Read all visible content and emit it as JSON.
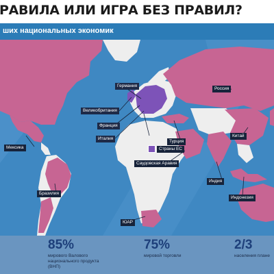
{
  "headline": "РАВИЛА ИЛИ ИГРА БЕЗ ПРАВИЛ?",
  "banner": "ших национальных экономик",
  "map_labels": {
    "germany": "Германия",
    "uk": "Великобритания",
    "france": "Франция",
    "italy": "Италия",
    "eu_legend": "Страны ЕС",
    "mexico": "Мексика",
    "russia": "Россия",
    "china": "Китай",
    "turkey": "Турция",
    "saudi": "Саудовская Аравия",
    "india": "Индия",
    "indonesia": "Индонезия",
    "brazil": "Бразилия",
    "south_africa": "ЮАР"
  },
  "stats": [
    {
      "value": "85%",
      "caption": "мирового Валового\nнационального продукта\n(ВНП)"
    },
    {
      "value": "75%",
      "caption": "мировой торговли"
    },
    {
      "value": "2/3",
      "caption": "населения плане"
    }
  ],
  "colors": {
    "ocean": "#3f88c2",
    "g20_country": "#c76593",
    "other_land": "#eeeeee",
    "eu_country": "#7d53b8",
    "banner": "#2c7cb7",
    "stats_band": "#6a95c0",
    "label_bg": "#17233a"
  }
}
